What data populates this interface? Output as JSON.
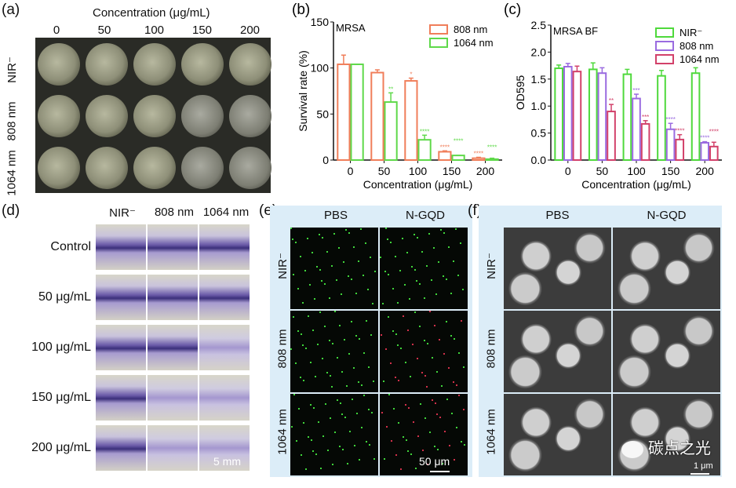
{
  "panel_a": {
    "label": "(a)",
    "title": "Concentration (μg/mL)",
    "columns": [
      "0",
      "50",
      "100",
      "150",
      "200"
    ],
    "rows": [
      "NIR⁻",
      "808 nm",
      "1064 nm"
    ]
  },
  "panel_d": {
    "label": "(d)",
    "columns": [
      "NIR⁻",
      "808 nm",
      "1064 nm"
    ],
    "rows": [
      "Control",
      "50 μg/mL",
      "100 μg/mL",
      "150 μg/mL",
      "200 μg/mL"
    ],
    "scale_bar": "5 mm"
  },
  "panel_e": {
    "label": "(e)",
    "columns": [
      "PBS",
      "N-GQD"
    ],
    "rows": [
      "NIR⁻",
      "808 nm",
      "1064 nm"
    ],
    "scale_bar": "50 μm"
  },
  "panel_f": {
    "label": "(f)",
    "columns": [
      "PBS",
      "N-GQD"
    ],
    "rows": [
      "NIR⁻",
      "808 nm",
      "1064 nm"
    ],
    "scale_bar": "1 μm"
  },
  "watermark": "碳点之光",
  "chart_data": [
    {
      "panel": "(b)",
      "type": "bar",
      "annotation": "MRSA",
      "xlabel": "Concentration (μg/mL)",
      "ylabel": "Survival rate (%)",
      "ylim": [
        0,
        150
      ],
      "yticks": [
        "0",
        "50",
        "100",
        "150"
      ],
      "categories": [
        "0",
        "50",
        "100",
        "150",
        "200"
      ],
      "legend": "top-right",
      "series": [
        {
          "name": "808 nm",
          "color": "#f07e5a",
          "values": [
            104,
            95,
            86,
            9,
            2
          ],
          "errors": [
            10,
            3,
            3,
            1,
            1
          ],
          "sig": [
            "",
            "",
            "*",
            "****",
            "****"
          ]
        },
        {
          "name": "1064 nm",
          "color": "#5fd94a",
          "values": [
            104,
            63,
            22,
            5,
            1
          ],
          "errors": [
            0,
            10,
            5,
            0,
            1
          ],
          "sig": [
            "",
            "**",
            "****",
            "****",
            "****"
          ]
        }
      ]
    },
    {
      "panel": "(c)",
      "type": "bar",
      "annotation": "MRSA BF",
      "xlabel": "Concentration (μg/mL)",
      "ylabel": "OD595",
      "ylim": [
        0,
        2.5
      ],
      "yticks": [
        "0.0",
        "0.5",
        "1.0",
        "1.5",
        "2.0",
        "2.5"
      ],
      "categories": [
        "0",
        "50",
        "100",
        "150",
        "200"
      ],
      "legend": "top-right",
      "series": [
        {
          "name": "NIR⁻",
          "color": "#4fd93c",
          "values": [
            1.7,
            1.68,
            1.59,
            1.56,
            1.61
          ],
          "errors": [
            0.06,
            0.12,
            0.09,
            0.1,
            0.1
          ],
          "sig": [
            "",
            "",
            "",
            "",
            ""
          ]
        },
        {
          "name": "808 nm",
          "color": "#9a6be0",
          "values": [
            1.73,
            1.61,
            1.14,
            0.57,
            0.32
          ],
          "errors": [
            0.06,
            0.1,
            0.08,
            0.11,
            0.02
          ],
          "sig": [
            "",
            "",
            "***",
            "****",
            "****"
          ]
        },
        {
          "name": "1064 nm",
          "color": "#d2416a",
          "values": [
            1.64,
            0.9,
            0.67,
            0.38,
            0.25
          ],
          "errors": [
            0.1,
            0.13,
            0.06,
            0.09,
            0.08
          ],
          "sig": [
            "",
            "**",
            "***",
            "****",
            "****"
          ]
        }
      ]
    }
  ]
}
